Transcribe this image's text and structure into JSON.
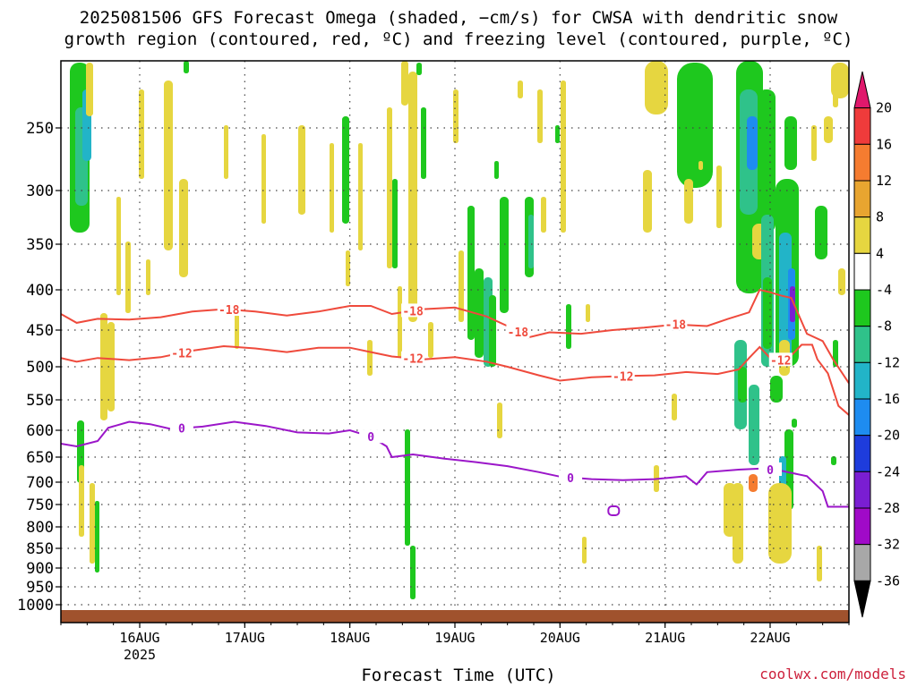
{
  "title_line1": "2025081506 GFS Forecast Omega (shaded, −cm/s) for CWSA with dendritic snow",
  "title_line2": "growth region (contoured, red, ºC) and freezing level (contoured, purple, ºC)",
  "xlabel": "Forecast Time (UTC)",
  "credit": "coolwx.com/models",
  "colors": {
    "dgz": "#ef4a3c",
    "freezing": "#9b16c9",
    "ground": "#a0522d",
    "grid": "#444444"
  },
  "chart_data": {
    "type": "heatmap",
    "y_axis": {
      "ticks": [
        250,
        300,
        350,
        400,
        450,
        500,
        550,
        600,
        650,
        700,
        750,
        800,
        850,
        900,
        950,
        1000
      ],
      "range": [
        200,
        1010
      ],
      "grid": true
    },
    "x_axis": {
      "ticks": [
        "16AUG",
        "17AUG",
        "18AUG",
        "19AUG",
        "20AUG",
        "21AUG",
        "22AUG"
      ],
      "year_label": "2025",
      "range_days": [
        15.25,
        22.75
      ],
      "grid": true
    },
    "colorbar": {
      "labels": [
        "20",
        "16",
        "12",
        "8",
        "4",
        "-4",
        "-8",
        "-12",
        "-16",
        "-20",
        "-24",
        "-28",
        "-32",
        "-36"
      ],
      "colors": [
        "#e0186c",
        "#ef3b3b",
        "#f57c30",
        "#e8a530",
        "#e6d640",
        "#ffffff",
        "#1ec81e",
        "#2fc28a",
        "#22b4c8",
        "#1e8cf0",
        "#1e3cdc",
        "#7a1ed2",
        "#a00ac8",
        "#a8a8a8",
        "#000000"
      ]
    },
    "contours": [
      {
        "label": "-18",
        "color": "red",
        "label_positions": [
          16.85,
          18.6,
          19.6,
          21.1
        ],
        "points": [
          [
            15.25,
            430
          ],
          [
            15.4,
            441
          ],
          [
            15.6,
            436
          ],
          [
            15.9,
            437
          ],
          [
            16.2,
            434
          ],
          [
            16.5,
            427
          ],
          [
            16.8,
            424
          ],
          [
            17.1,
            427
          ],
          [
            17.4,
            432
          ],
          [
            17.7,
            427
          ],
          [
            18.0,
            420
          ],
          [
            18.2,
            420
          ],
          [
            18.4,
            430
          ],
          [
            18.7,
            424
          ],
          [
            19.0,
            422
          ],
          [
            19.3,
            433
          ],
          [
            19.5,
            445
          ],
          [
            19.7,
            460
          ],
          [
            19.9,
            453
          ],
          [
            20.2,
            455
          ],
          [
            20.5,
            450
          ],
          [
            20.8,
            447
          ],
          [
            21.1,
            443
          ],
          [
            21.4,
            445
          ],
          [
            21.6,
            436
          ],
          [
            21.8,
            428
          ],
          [
            21.9,
            400
          ],
          [
            22.0,
            403
          ],
          [
            22.1,
            407
          ],
          [
            22.2,
            410
          ],
          [
            22.35,
            455
          ],
          [
            22.5,
            465
          ],
          [
            22.6,
            490
          ],
          [
            22.75,
            525
          ]
        ]
      },
      {
        "label": "-12",
        "color": "red",
        "label_positions": [
          16.4,
          18.6,
          20.6,
          22.1
        ],
        "points": [
          [
            15.25,
            488
          ],
          [
            15.4,
            493
          ],
          [
            15.6,
            488
          ],
          [
            15.9,
            491
          ],
          [
            16.2,
            487
          ],
          [
            16.5,
            478
          ],
          [
            16.8,
            472
          ],
          [
            17.1,
            475
          ],
          [
            17.4,
            480
          ],
          [
            17.7,
            474
          ],
          [
            18.0,
            474
          ],
          [
            18.2,
            480
          ],
          [
            18.4,
            486
          ],
          [
            18.7,
            490
          ],
          [
            19.0,
            487
          ],
          [
            19.3,
            493
          ],
          [
            19.5,
            500
          ],
          [
            19.8,
            513
          ],
          [
            20.0,
            521
          ],
          [
            20.3,
            516
          ],
          [
            20.6,
            514
          ],
          [
            20.9,
            513
          ],
          [
            21.2,
            508
          ],
          [
            21.5,
            511
          ],
          [
            21.7,
            504
          ],
          [
            21.8,
            488
          ],
          [
            21.9,
            473
          ],
          [
            22.0,
            488
          ],
          [
            22.15,
            492
          ],
          [
            22.3,
            470
          ],
          [
            22.4,
            470
          ],
          [
            22.45,
            490
          ],
          [
            22.55,
            510
          ],
          [
            22.65,
            560
          ],
          [
            22.75,
            575
          ]
        ]
      },
      {
        "label": "0",
        "color": "purple",
        "label_positions": [
          16.4,
          18.2,
          20.1,
          22.0
        ],
        "points": [
          [
            15.25,
            625
          ],
          [
            15.4,
            630
          ],
          [
            15.6,
            620
          ],
          [
            15.7,
            596
          ],
          [
            15.9,
            586
          ],
          [
            16.1,
            590
          ],
          [
            16.3,
            598
          ],
          [
            16.6,
            594
          ],
          [
            16.9,
            586
          ],
          [
            17.2,
            593
          ],
          [
            17.5,
            604
          ],
          [
            17.8,
            606
          ],
          [
            18.0,
            600
          ],
          [
            18.2,
            612
          ],
          [
            18.35,
            630
          ],
          [
            18.4,
            650
          ],
          [
            18.6,
            645
          ],
          [
            18.9,
            653
          ],
          [
            19.2,
            660
          ],
          [
            19.5,
            668
          ],
          [
            19.8,
            680
          ],
          [
            20.0,
            689
          ],
          [
            20.3,
            694
          ],
          [
            20.6,
            696
          ],
          [
            20.9,
            694
          ],
          [
            21.2,
            688
          ],
          [
            21.3,
            705
          ],
          [
            21.4,
            680
          ],
          [
            21.7,
            675
          ],
          [
            21.9,
            673
          ],
          [
            22.1,
            677
          ],
          [
            22.35,
            688
          ],
          [
            22.5,
            720
          ],
          [
            22.55,
            755
          ],
          [
            22.75,
            755
          ]
        ]
      }
    ]
  }
}
